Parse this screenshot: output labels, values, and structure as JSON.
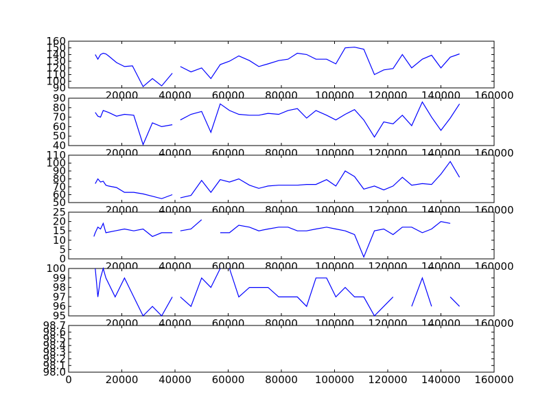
{
  "figure": {
    "background": "#ffffff",
    "line_color": "#0000ff"
  },
  "chart_data": [
    {
      "type": "line",
      "ylim": [
        90,
        160
      ],
      "yticks": [
        "90",
        "100",
        "110",
        "120",
        "130",
        "140",
        "150",
        "160"
      ],
      "xlim": [
        0,
        160000
      ],
      "xticks": [
        "20000",
        "40000",
        "60000",
        "80000",
        "100000",
        "120000",
        "140000",
        "160000"
      ],
      "segments": [
        [
          [
            10000,
            140
          ],
          [
            11000,
            133
          ],
          [
            12000,
            140
          ],
          [
            13000,
            142
          ],
          [
            14000,
            141
          ],
          [
            15000,
            138
          ],
          [
            18000,
            128
          ],
          [
            21000,
            122
          ],
          [
            24000,
            123
          ],
          [
            28000,
            92
          ],
          [
            31500,
            104
          ],
          [
            35000,
            93
          ],
          [
            39000,
            112
          ]
        ],
        [
          [
            42000,
            122
          ],
          [
            46000,
            114
          ],
          [
            50000,
            120
          ],
          [
            53500,
            104
          ],
          [
            57000,
            125
          ],
          [
            60500,
            130
          ],
          [
            64000,
            138
          ],
          [
            68000,
            131
          ],
          [
            71500,
            122
          ],
          [
            75000,
            126
          ],
          [
            79000,
            131
          ],
          [
            82500,
            133
          ],
          [
            86000,
            142
          ],
          [
            89500,
            140
          ],
          [
            93000,
            133
          ],
          [
            97000,
            133
          ],
          [
            100500,
            126
          ],
          [
            104000,
            150
          ],
          [
            107500,
            151
          ],
          [
            111000,
            148
          ],
          [
            115000,
            110
          ],
          [
            118500,
            117
          ],
          [
            122000,
            119
          ],
          [
            125500,
            140
          ],
          [
            129000,
            120
          ],
          [
            133000,
            133
          ],
          [
            136500,
            139
          ],
          [
            140000,
            120
          ],
          [
            143500,
            136
          ],
          [
            147000,
            141
          ]
        ]
      ]
    },
    {
      "type": "line",
      "ylim": [
        40,
        90
      ],
      "yticks": [
        "40",
        "50",
        "60",
        "70",
        "80",
        "90"
      ],
      "xlim": [
        0,
        160000
      ],
      "xticks": [
        "20000",
        "40000",
        "60000",
        "80000",
        "100000",
        "120000",
        "140000",
        "160000"
      ],
      "segments": [
        [
          [
            10000,
            75
          ],
          [
            11000,
            71
          ],
          [
            12000,
            70
          ],
          [
            13000,
            77
          ],
          [
            14000,
            76
          ],
          [
            15000,
            75
          ],
          [
            18000,
            71
          ],
          [
            21000,
            73
          ],
          [
            24500,
            72
          ],
          [
            28000,
            41
          ],
          [
            31500,
            64
          ],
          [
            35000,
            60
          ],
          [
            39000,
            62
          ]
        ],
        [
          [
            42000,
            67
          ],
          [
            46000,
            73
          ],
          [
            50000,
            76
          ],
          [
            53500,
            54
          ],
          [
            57000,
            84
          ],
          [
            60500,
            77
          ],
          [
            64000,
            73
          ],
          [
            68000,
            72
          ],
          [
            71500,
            72
          ],
          [
            75000,
            74
          ],
          [
            79000,
            73
          ],
          [
            82500,
            77
          ],
          [
            86000,
            79
          ],
          [
            89500,
            69
          ],
          [
            93000,
            77
          ],
          [
            97000,
            72
          ],
          [
            100500,
            67
          ],
          [
            104000,
            73
          ],
          [
            107500,
            78
          ],
          [
            111000,
            67
          ],
          [
            115000,
            49
          ],
          [
            118500,
            65
          ],
          [
            122000,
            63
          ],
          [
            125500,
            72
          ],
          [
            129000,
            61
          ],
          [
            133000,
            86
          ],
          [
            136500,
            70
          ],
          [
            140000,
            56
          ],
          [
            143500,
            69
          ],
          [
            147000,
            84
          ]
        ]
      ]
    },
    {
      "type": "line",
      "ylim": [
        50,
        110
      ],
      "yticks": [
        "50",
        "60",
        "70",
        "80",
        "90",
        "100",
        "110"
      ],
      "xlim": [
        0,
        160000
      ],
      "xticks": [
        "20000",
        "40000",
        "60000",
        "80000",
        "100000",
        "120000",
        "140000",
        "160000"
      ],
      "segments": [
        [
          [
            10000,
            74
          ],
          [
            11000,
            80
          ],
          [
            12000,
            76
          ],
          [
            13000,
            77
          ],
          [
            14000,
            72
          ],
          [
            15000,
            71
          ],
          [
            18000,
            69
          ],
          [
            21000,
            63
          ],
          [
            24500,
            63
          ],
          [
            28000,
            61
          ],
          [
            31500,
            58
          ],
          [
            35000,
            55
          ],
          [
            39000,
            60
          ]
        ],
        [
          [
            42000,
            56
          ],
          [
            46000,
            59
          ],
          [
            50000,
            78
          ],
          [
            53500,
            63
          ],
          [
            57000,
            79
          ],
          [
            60500,
            76
          ],
          [
            64000,
            80
          ],
          [
            68000,
            72
          ],
          [
            71500,
            68
          ],
          [
            75000,
            71
          ],
          [
            79000,
            72
          ],
          [
            82500,
            72
          ],
          [
            86000,
            72
          ],
          [
            89500,
            73
          ],
          [
            93000,
            73
          ],
          [
            97000,
            79
          ],
          [
            100500,
            71
          ],
          [
            104000,
            90
          ],
          [
            107500,
            83
          ],
          [
            111000,
            67
          ],
          [
            115000,
            71
          ],
          [
            118500,
            66
          ],
          [
            122000,
            71
          ],
          [
            125500,
            82
          ],
          [
            129000,
            72
          ],
          [
            133000,
            74
          ],
          [
            136500,
            73
          ],
          [
            140000,
            86
          ],
          [
            143500,
            102
          ],
          [
            147000,
            82
          ]
        ]
      ]
    },
    {
      "type": "line",
      "ylim": [
        0,
        25
      ],
      "yticks": [
        "0",
        "5",
        "10",
        "15",
        "20",
        "25"
      ],
      "xlim": [
        0,
        160000
      ],
      "xticks": [
        "20000",
        "40000",
        "60000",
        "80000",
        "100000",
        "120000",
        "140000",
        "160000"
      ],
      "segments": [
        [
          [
            9500,
            12
          ],
          [
            10000,
            14
          ],
          [
            11000,
            17
          ],
          [
            12000,
            16
          ],
          [
            13000,
            19
          ],
          [
            14000,
            14
          ],
          [
            17500,
            15
          ],
          [
            21000,
            16
          ],
          [
            24500,
            15
          ],
          [
            28000,
            16
          ],
          [
            31500,
            12
          ],
          [
            35000,
            14
          ],
          [
            39000,
            14
          ]
        ],
        [
          [
            42000,
            15
          ],
          [
            46000,
            16
          ],
          [
            50000,
            21
          ]
        ],
        [
          [
            57000,
            14
          ],
          [
            60500,
            14
          ],
          [
            64000,
            18
          ],
          [
            68000,
            17
          ],
          [
            71500,
            15
          ],
          [
            75000,
            16
          ],
          [
            79000,
            17
          ],
          [
            82500,
            17
          ],
          [
            86000,
            15
          ],
          [
            89500,
            15
          ],
          [
            93000,
            16
          ],
          [
            97000,
            17
          ],
          [
            100500,
            16
          ],
          [
            104000,
            15
          ],
          [
            107500,
            13
          ],
          [
            111000,
            1
          ],
          [
            115000,
            15
          ],
          [
            118500,
            16
          ],
          [
            122000,
            13
          ],
          [
            125500,
            17
          ],
          [
            129000,
            17
          ],
          [
            133000,
            14
          ],
          [
            136500,
            16
          ],
          [
            140000,
            20
          ],
          [
            143500,
            19
          ]
        ]
      ]
    },
    {
      "type": "line",
      "ylim": [
        95,
        100
      ],
      "yticks": [
        "95",
        "96",
        "97",
        "98",
        "99",
        "100"
      ],
      "xlim": [
        0,
        160000
      ],
      "xticks": [
        "20000",
        "40000",
        "60000",
        "80000",
        "100000",
        "120000",
        "140000",
        "160000"
      ],
      "segments": [
        [
          [
            10000,
            100
          ],
          [
            11000,
            97
          ],
          [
            12000,
            99
          ],
          [
            13000,
            100
          ],
          [
            14000,
            99
          ],
          [
            17500,
            97
          ],
          [
            21000,
            99
          ],
          [
            24500,
            97
          ],
          [
            28000,
            95
          ],
          [
            31500,
            96
          ],
          [
            35000,
            95
          ],
          [
            39000,
            97
          ]
        ],
        [
          [
            42000,
            97
          ],
          [
            46000,
            96
          ],
          [
            50000,
            99
          ],
          [
            53500,
            98
          ],
          [
            57000,
            100
          ]
        ],
        [
          [
            60500,
            100
          ],
          [
            64000,
            97
          ],
          [
            68000,
            98
          ],
          [
            71500,
            98
          ],
          [
            75000,
            98
          ],
          [
            79000,
            97
          ],
          [
            82500,
            97
          ],
          [
            86000,
            97
          ],
          [
            89500,
            96
          ],
          [
            93000,
            99
          ],
          [
            97000,
            99
          ],
          [
            100500,
            97
          ],
          [
            104000,
            98
          ],
          [
            107500,
            97
          ],
          [
            111000,
            97
          ],
          [
            115000,
            95
          ],
          [
            118500,
            96
          ],
          [
            122000,
            97
          ]
        ],
        [
          [
            129000,
            96
          ],
          [
            133000,
            99
          ],
          [
            136500,
            96
          ]
        ],
        [
          [
            143500,
            97
          ],
          [
            147000,
            96
          ]
        ]
      ]
    },
    {
      "type": "line",
      "ylim": [
        98.0,
        98.7
      ],
      "yticks": [
        "98.0",
        "98.1",
        "98.2",
        "98.3",
        "98.4",
        "98.5",
        "98.6",
        "98.7"
      ],
      "xlim": [
        0,
        160000
      ],
      "xticks": [
        "0",
        "20000",
        "40000",
        "60000",
        "80000",
        "100000",
        "120000",
        "140000",
        "160000"
      ],
      "segments": []
    }
  ]
}
